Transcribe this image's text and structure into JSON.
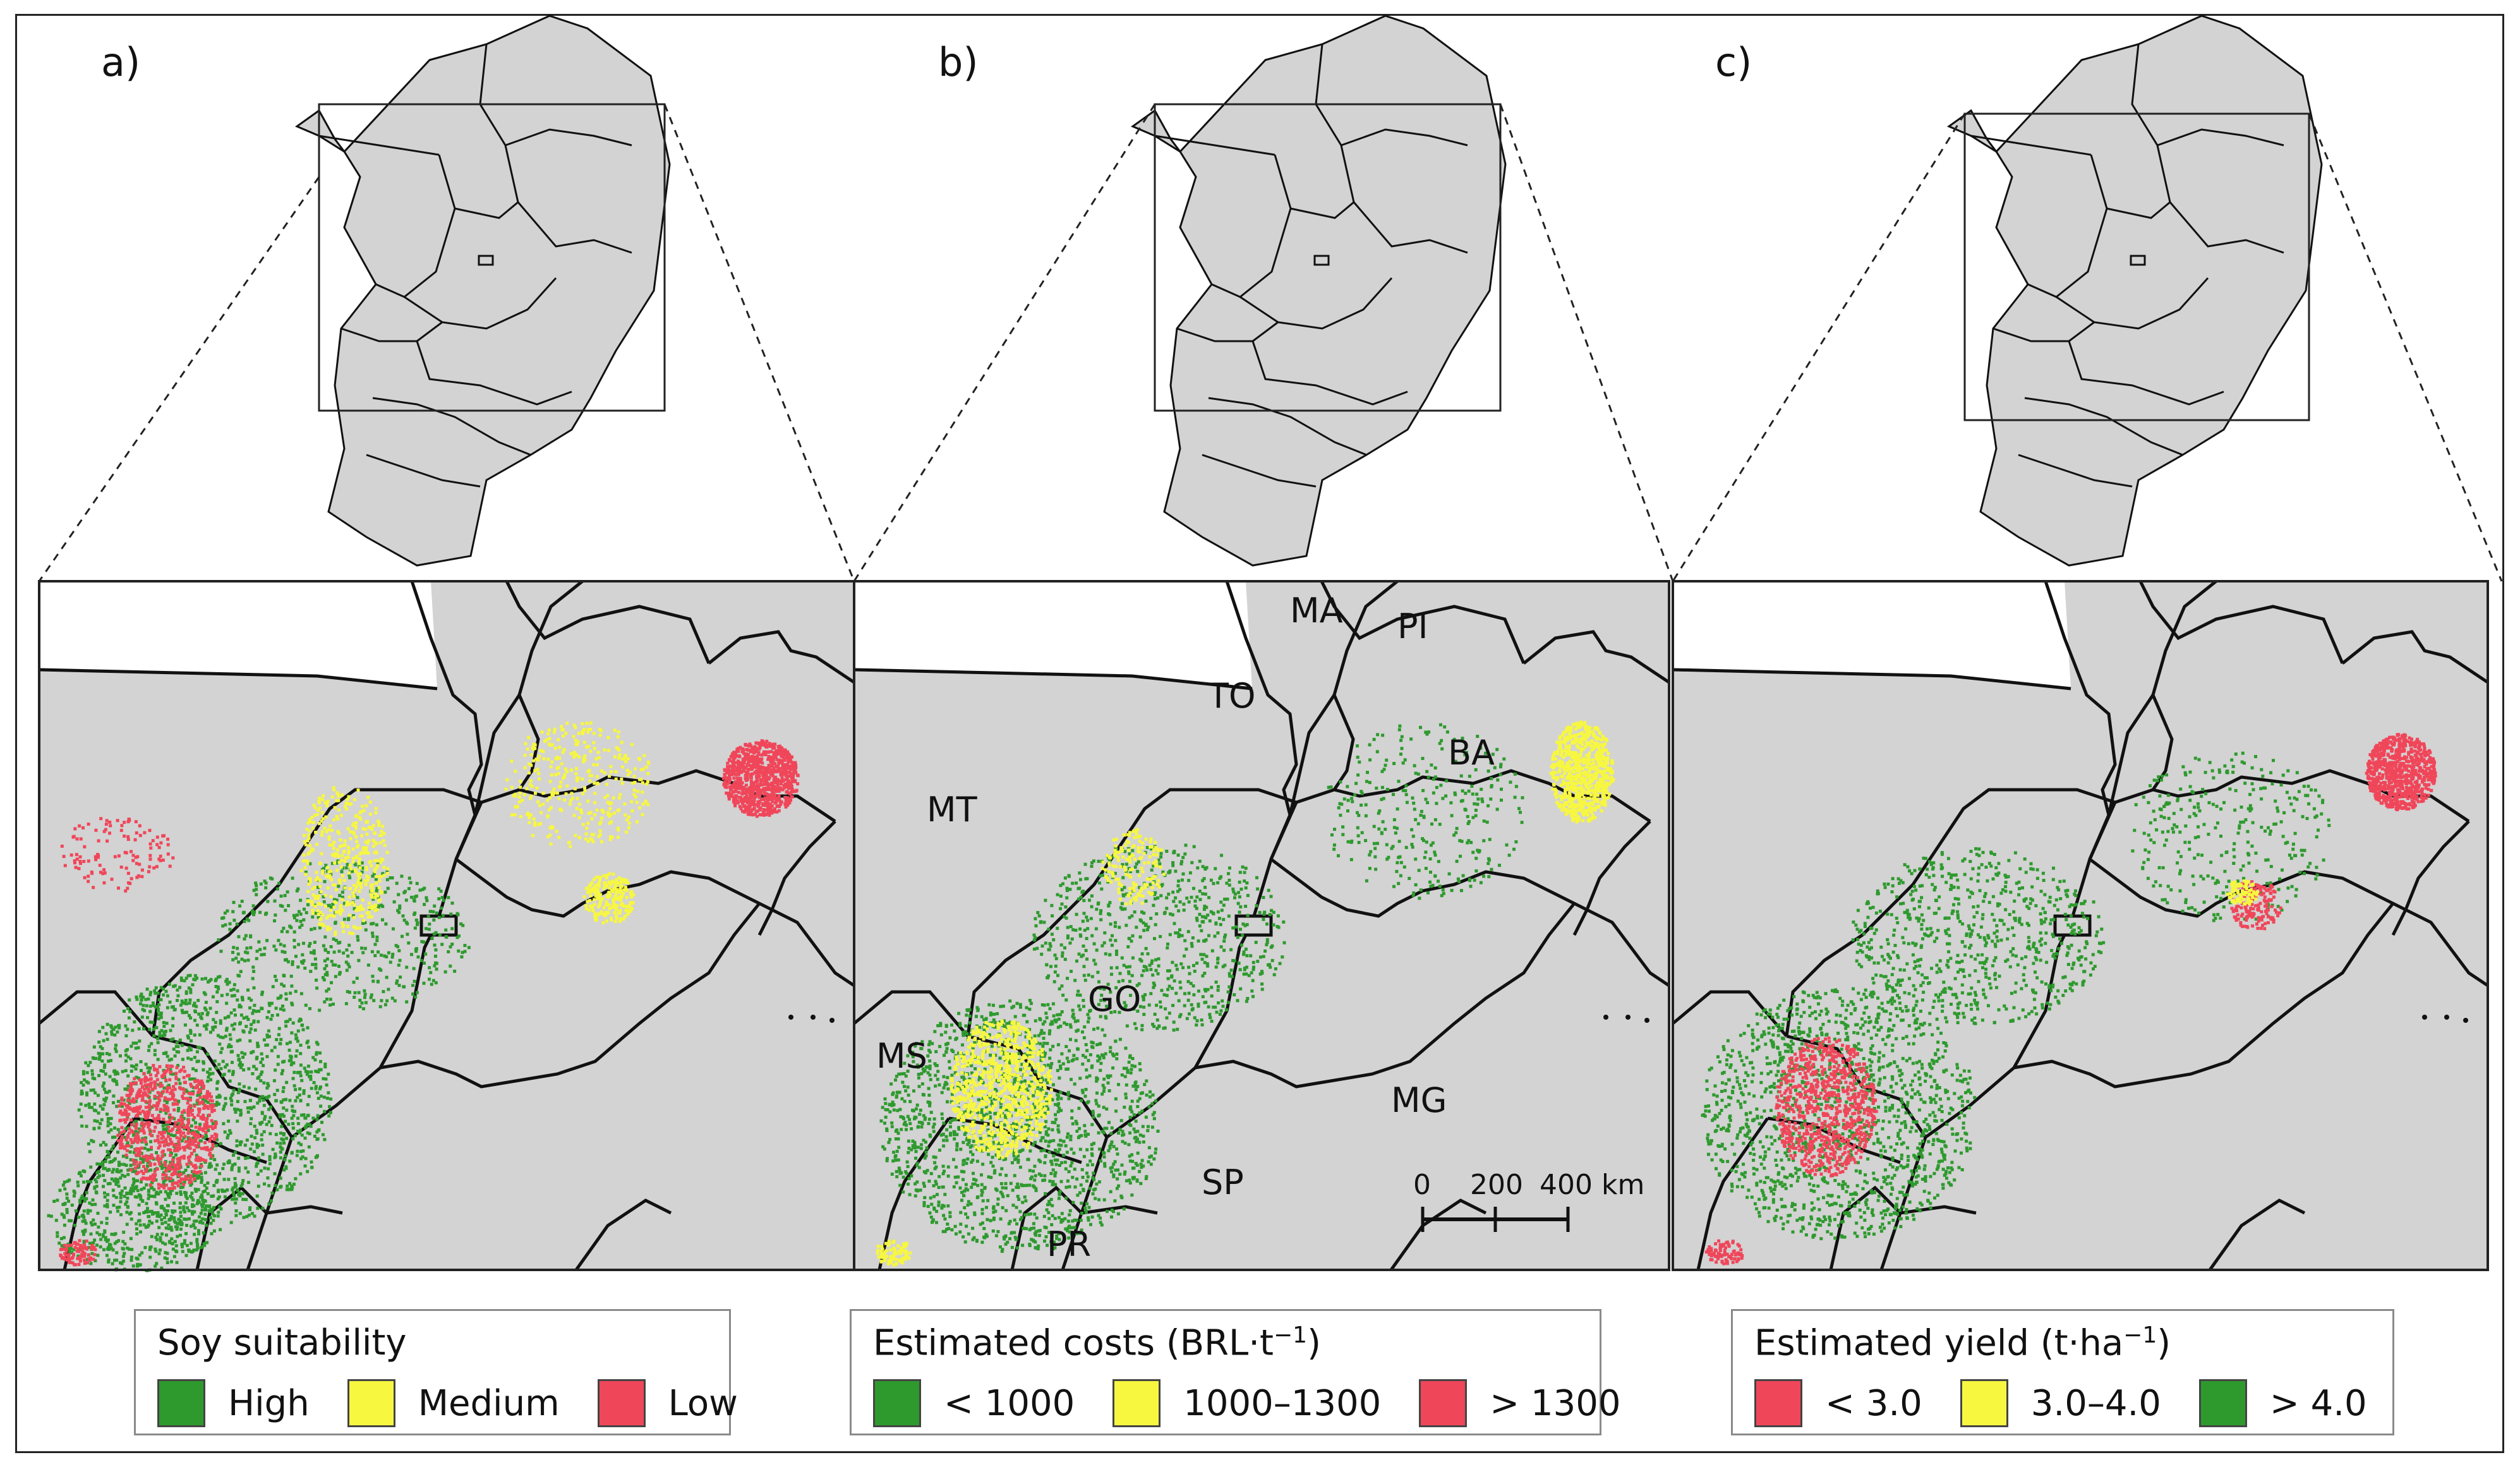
{
  "panels": [
    {
      "label": "a)",
      "legend": {
        "title": "Soy suitability",
        "title_html": false,
        "entries": [
          {
            "label": "High",
            "color": "#2e9a2e"
          },
          {
            "label": "Medium",
            "color": "#f7f740"
          },
          {
            "label": "Low",
            "color": "#f0465a"
          }
        ]
      }
    },
    {
      "label": "b)",
      "legend": {
        "title": "Estimated costs (BRL·t",
        "title_sup": "−1",
        "title_end": ")",
        "entries": [
          {
            "label": "< 1000",
            "color": "#2e9a2e"
          },
          {
            "label": "1000–1300",
            "color": "#f7f740"
          },
          {
            "label": "> 1300",
            "color": "#f0465a"
          }
        ]
      }
    },
    {
      "label": "c)",
      "legend": {
        "title": "Estimated yield (t·ha",
        "title_sup": "−1",
        "title_end": ")",
        "entries": [
          {
            "label": "< 3.0",
            "color": "#f0465a"
          },
          {
            "label": "3.0–4.0",
            "color": "#f7f740"
          },
          {
            "label": "> 4.0",
            "color": "#2e9a2e"
          }
        ]
      }
    }
  ],
  "state_labels": [
    "MA",
    "PI",
    "TO",
    "BA",
    "MT",
    "GO",
    "MS",
    "MG",
    "SP",
    "PR"
  ],
  "scale_bar": {
    "ticks": [
      "0",
      "200",
      "400 km"
    ]
  },
  "colors": {
    "land": "#d3d3d3",
    "border": "#111111",
    "high": "#2e9a2e",
    "medium": "#f7f740",
    "low": "#f0465a"
  }
}
